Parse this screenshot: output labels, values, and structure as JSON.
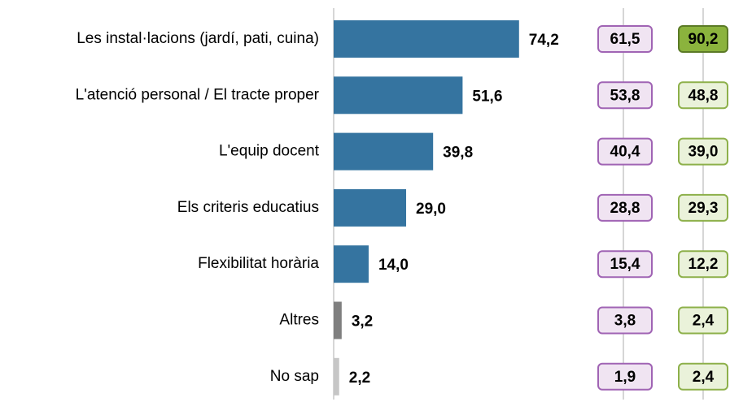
{
  "chart_data": {
    "type": "bar",
    "orientation": "horizontal",
    "categories": [
      "Les instal·lacions (jardí, pati, cuina)",
      "L'atenció personal / El tracte proper",
      "L'equip docent",
      "Els criteris educatius",
      "Flexibilitat horària",
      "Altres",
      "No sap"
    ],
    "values": [
      74.2,
      51.6,
      39.8,
      29.0,
      14.0,
      3.2,
      2.2
    ],
    "value_labels": [
      "74,2",
      "51,6",
      "39,8",
      "29,0",
      "14,0",
      "3,2",
      "2,2"
    ],
    "colors": [
      "#3574a0",
      "#3574a0",
      "#3574a0",
      "#3574a0",
      "#3574a0",
      "#7f7f7f",
      "#c6c6c6"
    ],
    "series": [
      {
        "color": "#a064b4",
        "fill": "#f0e4f2",
        "values": [
          61.5,
          53.8,
          40.4,
          28.8,
          15.4,
          3.8,
          1.9
        ],
        "value_labels": [
          "61,5",
          "53,8",
          "40,4",
          "28,8",
          "15,4",
          "3,8",
          "1,9"
        ]
      },
      {
        "color": "#8db04a",
        "fill": "#eaf2da",
        "highlight": 0,
        "highlight_fill": "#8bb33d",
        "highlight_color": "#5b7a26",
        "values": [
          90.2,
          48.8,
          39.0,
          29.3,
          12.2,
          2.4,
          2.4
        ],
        "value_labels": [
          "90,2",
          "48,8",
          "39,0",
          "29,3",
          "12,2",
          "2,4",
          "2,4"
        ]
      }
    ]
  }
}
